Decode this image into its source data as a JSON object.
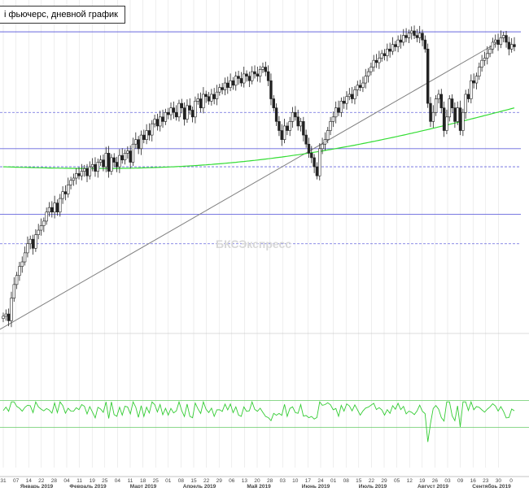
{
  "title": "i фьючерс, дневной график",
  "watermark": "БКСЭкспресс",
  "colors": {
    "candle": "#222222",
    "candle_up_fill": "#ffffff",
    "ma": "#33dd33",
    "trendline": "#808080",
    "level_solid": "#6666dd",
    "level_dashed": "#6666dd",
    "oscillator": "#33cc33",
    "osc_bound": "#66cc66",
    "grid": "#dddddd"
  },
  "chart_data": [
    {
      "type": "candlestick",
      "title": "i фьючерс, дневной график",
      "x_ticks": [
        "31",
        "07",
        "14",
        "22",
        "28",
        "04",
        "11",
        "19",
        "25",
        "04",
        "11",
        "18",
        "25",
        "01",
        "08",
        "15",
        "22",
        "29",
        "06",
        "13",
        "20",
        "28",
        "03",
        "10",
        "17",
        "24",
        "01",
        "08",
        "15",
        "22",
        "29",
        "05",
        "12",
        "19",
        "26",
        "03",
        "09",
        "16",
        "23",
        "30",
        "0"
      ],
      "months": [
        "Январь 2019",
        "Февраль 2019",
        "Март 2019",
        "Апрель 2019",
        "Май 2019",
        "Июнь 2019",
        "Июль 2019",
        "Август 2019",
        "Сентябрь 2019"
      ],
      "close": [
        2470,
        2475,
        2460,
        2510,
        2540,
        2560,
        2580,
        2590,
        2610,
        2630,
        2640,
        2620,
        2650,
        2660,
        2670,
        2680,
        2700,
        2710,
        2700,
        2720,
        2700,
        2730,
        2745,
        2740,
        2760,
        2770,
        2775,
        2785,
        2780,
        2790,
        2796,
        2780,
        2800,
        2805,
        2790,
        2810,
        2815,
        2800,
        2830,
        2790,
        2820,
        2810,
        2800,
        2825,
        2815,
        2830,
        2835,
        2810,
        2850,
        2860,
        2840,
        2870,
        2860,
        2880,
        2870,
        2895,
        2905,
        2890,
        2910,
        2900,
        2920,
        2915,
        2930,
        2920,
        2910,
        2940,
        2930,
        2905,
        2935,
        2925,
        2910,
        2945,
        2950,
        2930,
        2960,
        2955,
        2945,
        2960,
        2950,
        2965,
        2975,
        2970,
        2985,
        2975,
        2990,
        2980,
        3000,
        2995,
        2985,
        3005,
        3000,
        2990,
        3010,
        3005,
        3000,
        3015,
        3020,
        3010,
        2990,
        2950,
        2930,
        2900,
        2880,
        2860,
        2890,
        2880,
        2900,
        2920,
        2910,
        2890,
        2900,
        2870,
        2850,
        2830,
        2820,
        2800,
        2780,
        2840,
        2850,
        2860,
        2880,
        2900,
        2910,
        2930,
        2920,
        2945,
        2940,
        2955,
        2960,
        2950,
        2970,
        2980,
        2975,
        2985,
        3000,
        3010,
        3020,
        3035,
        3030,
        3040,
        3050,
        3045,
        3060,
        3055,
        3070,
        3065,
        3080,
        3075,
        3090,
        3085,
        3095,
        3100,
        3090,
        3085,
        3095,
        3080,
        3060,
        2940,
        2900,
        2920,
        2950,
        2960,
        2930,
        2880,
        2910,
        2950,
        2930,
        2900,
        2930,
        2880,
        2920,
        2960,
        2950,
        2990,
        2985,
        3000,
        3020,
        3035,
        3040,
        3050,
        3060,
        3075,
        3080,
        3070,
        3085,
        3090,
        3075,
        3060,
        3070,
        3065
      ],
      "moving_average": {
        "start": 2800,
        "end": 2930,
        "min": 2795
      },
      "levels_solid": [
        3098,
        2840,
        2695
      ],
      "levels_dashed": [
        2920,
        2800,
        2630
      ],
      "oscillator": {
        "upper": 70,
        "lower": 30,
        "last": 58
      }
    }
  ]
}
